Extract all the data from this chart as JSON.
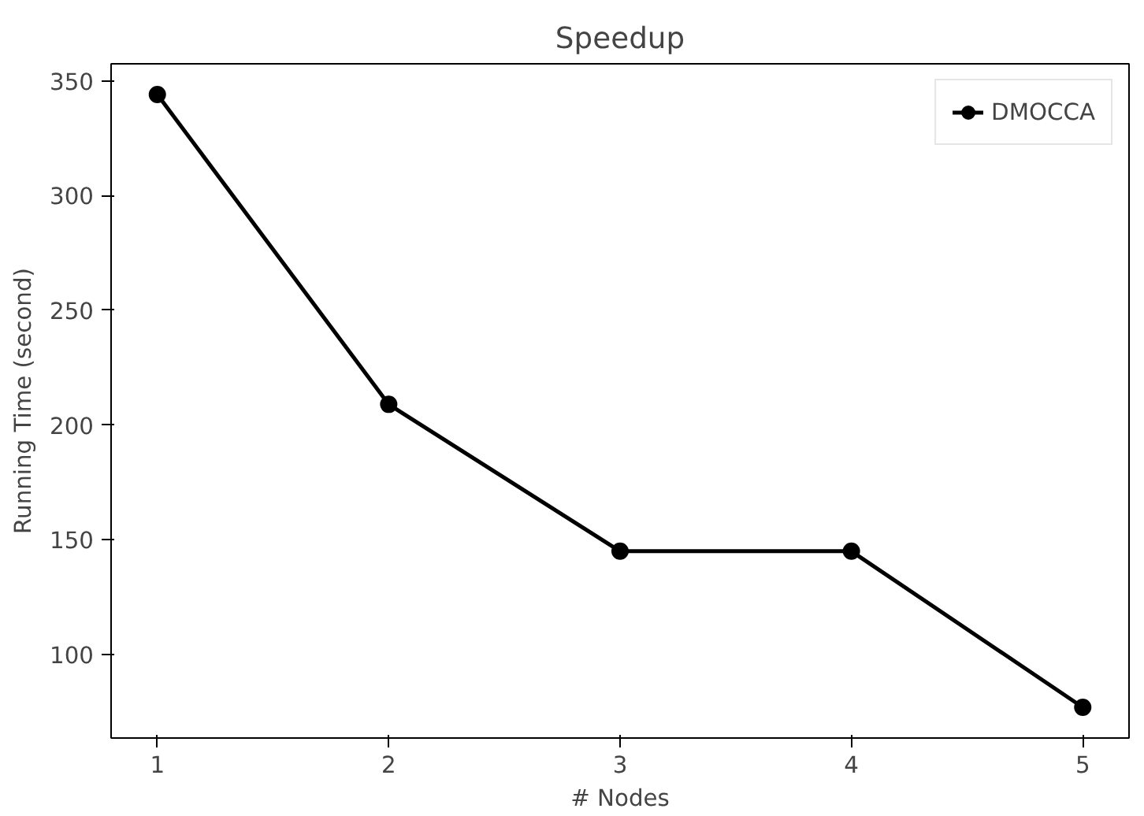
{
  "chart_data": {
    "type": "line",
    "title": "Speedup",
    "xlabel": "# Nodes",
    "ylabel": "Running Time (second)",
    "x": [
      1,
      2,
      3,
      4,
      5
    ],
    "series": [
      {
        "name": "DMOCCA",
        "color": "#000000",
        "values": [
          344,
          209,
          145,
          145,
          77
        ]
      }
    ],
    "xlim": [
      0.8,
      5.2
    ],
    "ylim": [
      63.6,
      357.4
    ],
    "xticks": [
      1,
      2,
      3,
      4,
      5
    ],
    "yticks": [
      100,
      150,
      200,
      250,
      300,
      350
    ],
    "grid": false,
    "legend": "top right",
    "marker": "circle",
    "line_style": "solid"
  }
}
